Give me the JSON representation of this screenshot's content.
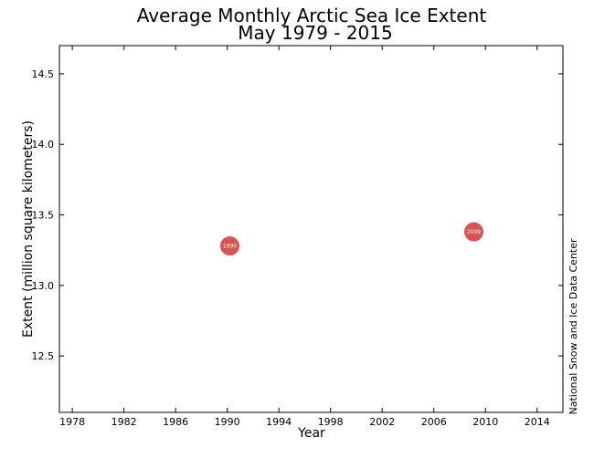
{
  "chart_data": {
    "type": "scatter",
    "title": "Average Monthly Arctic Sea Ice Extent",
    "subtitle": "May 1979 - 2015",
    "xlabel": "Year",
    "ylabel": "Extent (million square kilometers)",
    "credit": "National Snow and Ice Data Center",
    "xlim": [
      1977,
      2016
    ],
    "ylim": [
      12.1,
      14.7
    ],
    "xticks": [
      1978,
      1982,
      1986,
      1990,
      1994,
      1998,
      2002,
      2006,
      2010,
      2014
    ],
    "yticks": [
      12.5,
      13.0,
      13.5,
      14.0,
      14.5
    ],
    "grid": false,
    "marker_color": "#d9534f",
    "points": [
      {
        "x": 1990.2,
        "y": 13.28,
        "label": "1990"
      },
      {
        "x": 2009.1,
        "y": 13.38,
        "label": "2009"
      }
    ]
  }
}
